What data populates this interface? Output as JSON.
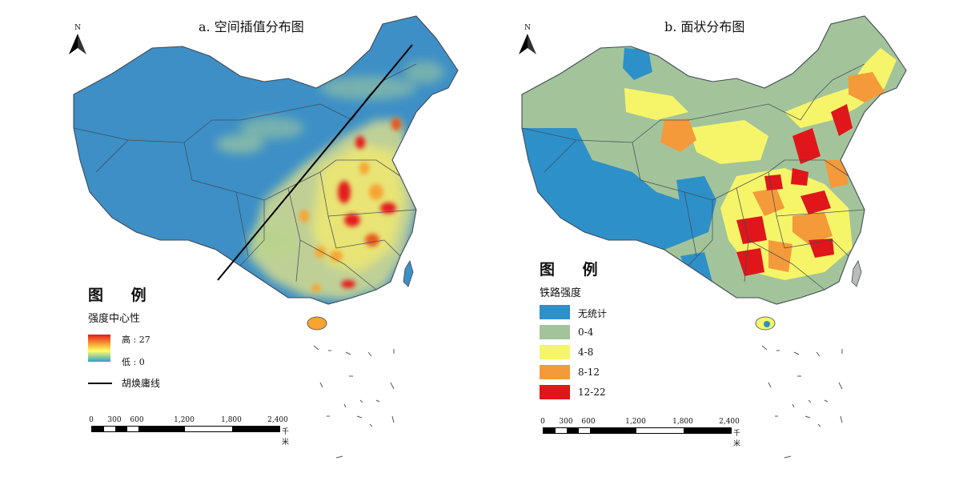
{
  "panel_a": {
    "title": "a. 空间插值分布图",
    "north": "N",
    "legend": {
      "title": "图 例",
      "subtitle": "强度中心性",
      "high_label": "高 : 27",
      "low_label": "低 : 0",
      "line_label": "胡焕庸线"
    },
    "scale": {
      "ticks": [
        "0",
        "300",
        "600",
        "1,200",
        "1,800",
        "2,400"
      ],
      "unit": "千米"
    }
  },
  "panel_b": {
    "title": "b. 面状分布图",
    "north": "N",
    "legend": {
      "title": "图 例",
      "subtitle": "铁路强度",
      "classes": [
        {
          "label": "无统计",
          "color": "#2e90c8"
        },
        {
          "label": "0-4",
          "color": "#a3c49a"
        },
        {
          "label": "4-8",
          "color": "#f6f56a"
        },
        {
          "label": "8-12",
          "color": "#f59a3a"
        },
        {
          "label": "12-22",
          "color": "#e0161b"
        }
      ]
    },
    "scale": {
      "ticks": [
        "0",
        "300",
        "600",
        "1,200",
        "1,800",
        "2,400"
      ],
      "unit": "千米"
    }
  },
  "colors": {
    "base_blue": "#3d8fc6",
    "hot_red": "#e41a1c",
    "hot_yellow": "#ffff66",
    "hot_orange": "#f7a431"
  }
}
